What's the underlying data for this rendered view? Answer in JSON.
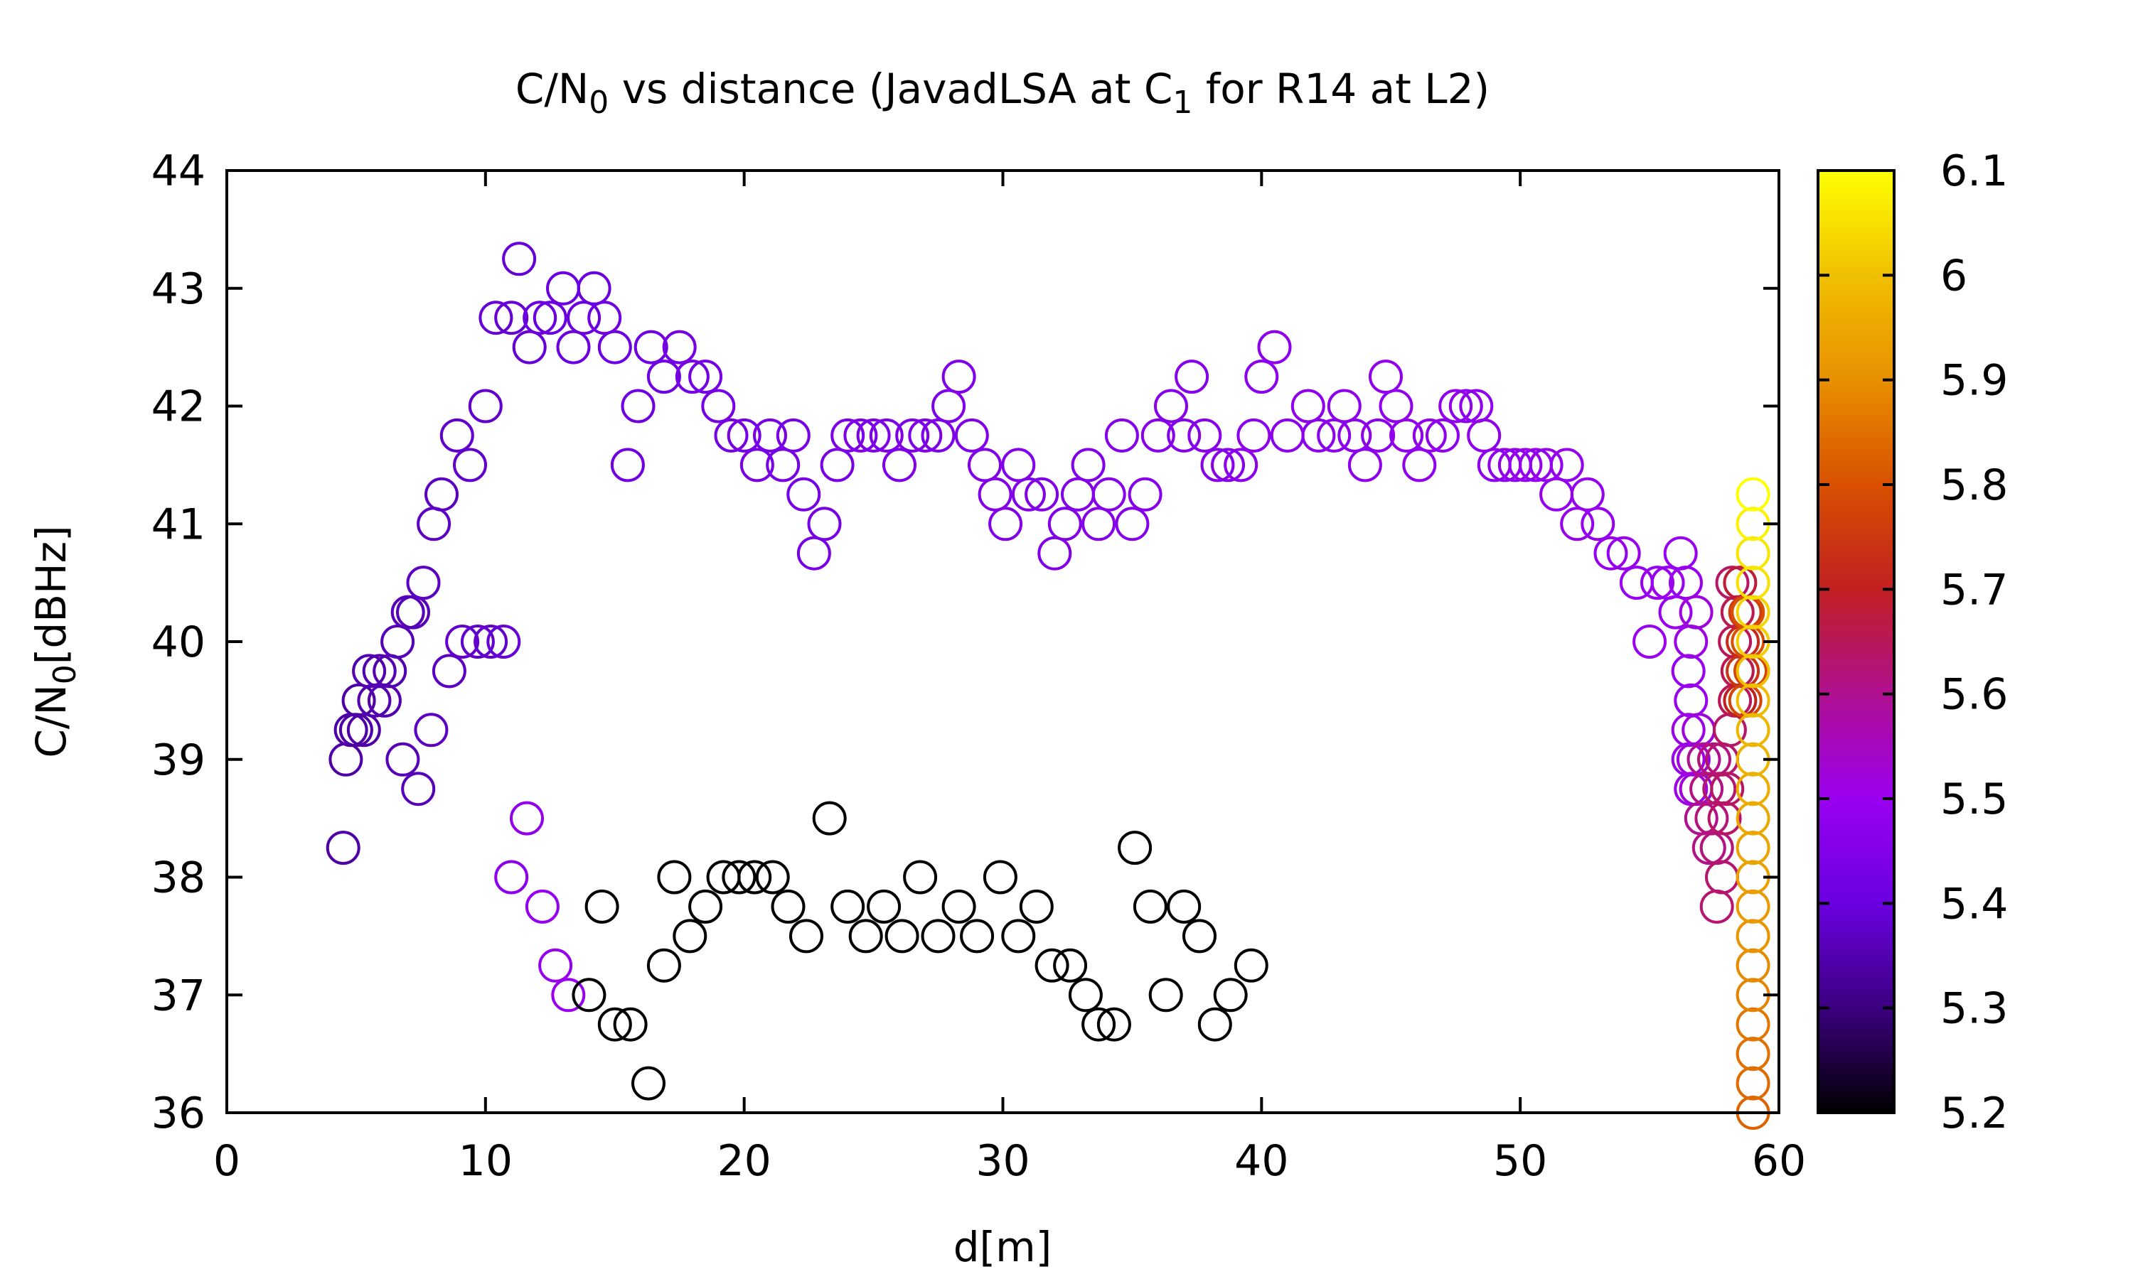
{
  "chart_data": {
    "type": "scatter",
    "title": {
      "pre": "C/N",
      "sub": "0",
      "mid": " vs distance (JavadLSA at C",
      "sub2": "1",
      "post": " for R14 at L2)"
    },
    "xlabel": "d[m]",
    "ylabel": {
      "pre": "C/N",
      "sub": "0",
      "post": "[dBHz]"
    },
    "xlim": [
      0,
      60
    ],
    "ylim": [
      36,
      44
    ],
    "xticks": [
      "0",
      "10",
      "20",
      "30",
      "40",
      "50",
      "60"
    ],
    "yticks": [
      "36",
      "37",
      "38",
      "39",
      "40",
      "41",
      "42",
      "43",
      "44"
    ],
    "colorbar": {
      "range": [
        5.2,
        6.1
      ],
      "ticks": [
        "5.2",
        "5.3",
        "5.4",
        "5.5",
        "5.6",
        "5.7",
        "5.8",
        "5.9",
        "6",
        "6.1"
      ],
      "palette": [
        "#000000",
        "#3b0080",
        "#6a00e0",
        "#9a00f0",
        "#b01090",
        "#c02020",
        "#d85000",
        "#e89000",
        "#f0c000",
        "#ffff00"
      ]
    },
    "grid": false,
    "marker": "open-circle",
    "points": [
      [
        4.5,
        38.25,
        5.34
      ],
      [
        4.6,
        39.0,
        5.34
      ],
      [
        4.8,
        39.25,
        5.34
      ],
      [
        5.0,
        39.25,
        5.34
      ],
      [
        5.1,
        39.5,
        5.34
      ],
      [
        5.3,
        39.25,
        5.34
      ],
      [
        5.5,
        39.75,
        5.35
      ],
      [
        5.7,
        39.5,
        5.35
      ],
      [
        5.9,
        39.75,
        5.35
      ],
      [
        6.1,
        39.5,
        5.35
      ],
      [
        6.3,
        39.75,
        5.35
      ],
      [
        6.6,
        40.0,
        5.36
      ],
      [
        6.8,
        39.0,
        5.36
      ],
      [
        7.0,
        40.25,
        5.36
      ],
      [
        7.2,
        40.25,
        5.36
      ],
      [
        7.4,
        38.75,
        5.36
      ],
      [
        7.6,
        40.5,
        5.37
      ],
      [
        7.9,
        39.25,
        5.37
      ],
      [
        8.0,
        41.0,
        5.37
      ],
      [
        8.3,
        41.25,
        5.37
      ],
      [
        8.6,
        39.75,
        5.37
      ],
      [
        8.9,
        41.75,
        5.38
      ],
      [
        9.1,
        40.0,
        5.38
      ],
      [
        9.4,
        41.5,
        5.38
      ],
      [
        9.7,
        40.0,
        5.38
      ],
      [
        10.0,
        42.0,
        5.38
      ],
      [
        10.2,
        40.0,
        5.38
      ],
      [
        10.4,
        42.75,
        5.39
      ],
      [
        10.7,
        40.0,
        5.39
      ],
      [
        11.0,
        42.75,
        5.39
      ],
      [
        11.3,
        43.25,
        5.39
      ],
      [
        11.7,
        42.5,
        5.39
      ],
      [
        12.1,
        42.75,
        5.4
      ],
      [
        12.5,
        42.75,
        5.4
      ],
      [
        13.0,
        43.0,
        5.4
      ],
      [
        13.4,
        42.5,
        5.4
      ],
      [
        13.8,
        42.75,
        5.4
      ],
      [
        14.2,
        43.0,
        5.4
      ],
      [
        14.6,
        42.75,
        5.41
      ],
      [
        15.0,
        42.5,
        5.41
      ],
      [
        15.5,
        41.5,
        5.41
      ],
      [
        15.9,
        42.0,
        5.41
      ],
      [
        16.4,
        42.5,
        5.41
      ],
      [
        16.9,
        42.25,
        5.41
      ],
      [
        17.5,
        42.5,
        5.42
      ],
      [
        18.0,
        42.25,
        5.42
      ],
      [
        18.5,
        42.25,
        5.42
      ],
      [
        19.0,
        42.0,
        5.42
      ],
      [
        19.5,
        41.75,
        5.42
      ],
      [
        20.0,
        41.75,
        5.42
      ],
      [
        20.5,
        41.5,
        5.43
      ],
      [
        21.0,
        41.75,
        5.43
      ],
      [
        21.5,
        41.5,
        5.43
      ],
      [
        21.9,
        41.75,
        5.43
      ],
      [
        22.3,
        41.25,
        5.43
      ],
      [
        22.7,
        40.75,
        5.43
      ],
      [
        23.1,
        41.0,
        5.43
      ],
      [
        23.6,
        41.5,
        5.43
      ],
      [
        24.0,
        41.75,
        5.44
      ],
      [
        24.5,
        41.75,
        5.44
      ],
      [
        25.0,
        41.75,
        5.44
      ],
      [
        25.5,
        41.75,
        5.44
      ],
      [
        26.0,
        41.5,
        5.44
      ],
      [
        26.5,
        41.75,
        5.44
      ],
      [
        27.0,
        41.75,
        5.44
      ],
      [
        27.5,
        41.75,
        5.44
      ],
      [
        27.9,
        42.0,
        5.44
      ],
      [
        28.3,
        42.25,
        5.45
      ],
      [
        28.8,
        41.75,
        5.45
      ],
      [
        29.3,
        41.5,
        5.45
      ],
      [
        29.7,
        41.25,
        5.45
      ],
      [
        30.1,
        41.0,
        5.45
      ],
      [
        30.6,
        41.5,
        5.45
      ],
      [
        31.0,
        41.25,
        5.45
      ],
      [
        31.5,
        41.25,
        5.45
      ],
      [
        32.0,
        40.75,
        5.45
      ],
      [
        32.4,
        41.0,
        5.45
      ],
      [
        32.9,
        41.25,
        5.45
      ],
      [
        33.3,
        41.5,
        5.45
      ],
      [
        33.7,
        41.0,
        5.46
      ],
      [
        34.1,
        41.25,
        5.46
      ],
      [
        34.6,
        41.75,
        5.46
      ],
      [
        35.0,
        41.0,
        5.46
      ],
      [
        35.5,
        41.25,
        5.46
      ],
      [
        36.0,
        41.75,
        5.46
      ],
      [
        36.5,
        42.0,
        5.46
      ],
      [
        37.0,
        41.75,
        5.46
      ],
      [
        37.3,
        42.25,
        5.46
      ],
      [
        37.8,
        41.75,
        5.46
      ],
      [
        38.3,
        41.5,
        5.46
      ],
      [
        38.7,
        41.5,
        5.46
      ],
      [
        39.2,
        41.5,
        5.47
      ],
      [
        39.7,
        41.75,
        5.47
      ],
      [
        40.0,
        42.25,
        5.47
      ],
      [
        40.5,
        42.5,
        5.47
      ],
      [
        41.0,
        41.75,
        5.47
      ],
      [
        41.8,
        42.0,
        5.47
      ],
      [
        42.2,
        41.75,
        5.47
      ],
      [
        42.8,
        41.75,
        5.47
      ],
      [
        43.2,
        42.0,
        5.47
      ],
      [
        43.6,
        41.75,
        5.47
      ],
      [
        44.0,
        41.5,
        5.47
      ],
      [
        44.5,
        41.75,
        5.47
      ],
      [
        44.8,
        42.25,
        5.48
      ],
      [
        45.2,
        42.0,
        5.48
      ],
      [
        45.6,
        41.75,
        5.48
      ],
      [
        46.1,
        41.5,
        5.48
      ],
      [
        46.5,
        41.75,
        5.48
      ],
      [
        47.0,
        41.75,
        5.48
      ],
      [
        47.5,
        42.0,
        5.48
      ],
      [
        47.9,
        42.0,
        5.48
      ],
      [
        48.3,
        42.0,
        5.48
      ],
      [
        48.6,
        41.75,
        5.48
      ],
      [
        49.0,
        41.5,
        5.48
      ],
      [
        49.4,
        41.5,
        5.48
      ],
      [
        49.8,
        41.5,
        5.48
      ],
      [
        50.2,
        41.5,
        5.49
      ],
      [
        50.6,
        41.5,
        5.49
      ],
      [
        51.0,
        41.5,
        5.49
      ],
      [
        51.4,
        41.25,
        5.49
      ],
      [
        51.8,
        41.5,
        5.49
      ],
      [
        52.2,
        41.0,
        5.49
      ],
      [
        52.6,
        41.25,
        5.49
      ],
      [
        53.0,
        41.0,
        5.49
      ],
      [
        53.5,
        40.75,
        5.49
      ],
      [
        54.0,
        40.75,
        5.49
      ],
      [
        54.5,
        40.5,
        5.5
      ],
      [
        55.0,
        40.0,
        5.5
      ],
      [
        55.3,
        40.5,
        5.5
      ],
      [
        55.7,
        40.5,
        5.5
      ],
      [
        56.0,
        40.25,
        5.5
      ],
      [
        56.2,
        40.75,
        5.5
      ],
      [
        56.4,
        40.5,
        5.5
      ],
      [
        56.5,
        39.75,
        5.5
      ],
      [
        56.6,
        39.5,
        5.5
      ],
      [
        56.5,
        39.25,
        5.51
      ],
      [
        56.5,
        39.0,
        5.51
      ],
      [
        56.6,
        38.75,
        5.51
      ],
      [
        56.6,
        40.0,
        5.51
      ],
      [
        56.7,
        39.0,
        5.52
      ],
      [
        56.8,
        38.75,
        5.52
      ],
      [
        56.8,
        40.25,
        5.52
      ],
      [
        56.9,
        39.25,
        5.52
      ],
      [
        57.0,
        38.5,
        5.6
      ],
      [
        57.1,
        39.0,
        5.6
      ],
      [
        57.2,
        38.75,
        5.61
      ],
      [
        57.3,
        38.25,
        5.61
      ],
      [
        57.4,
        38.5,
        5.62
      ],
      [
        57.5,
        39.0,
        5.62
      ],
      [
        57.6,
        38.25,
        5.62
      ],
      [
        57.6,
        37.75,
        5.63
      ],
      [
        57.7,
        38.75,
        5.63
      ],
      [
        57.8,
        38.0,
        5.63
      ],
      [
        57.8,
        39.0,
        5.63
      ],
      [
        57.9,
        38.5,
        5.64
      ],
      [
        58.0,
        38.75,
        5.64
      ],
      [
        58.1,
        39.25,
        5.64
      ],
      [
        58.2,
        40.5,
        5.64
      ],
      [
        58.3,
        39.5,
        5.65
      ],
      [
        58.3,
        40.0,
        5.65
      ],
      [
        58.4,
        40.25,
        5.66
      ],
      [
        58.4,
        39.75,
        5.66
      ],
      [
        58.5,
        40.5,
        5.68
      ],
      [
        58.5,
        39.5,
        5.7
      ],
      [
        58.6,
        40.0,
        5.72
      ],
      [
        58.6,
        39.75,
        5.74
      ],
      [
        58.7,
        40.25,
        5.76
      ],
      [
        58.7,
        39.5,
        5.78
      ],
      [
        58.8,
        40.0,
        5.8
      ],
      [
        58.8,
        40.25,
        5.8
      ],
      [
        58.9,
        39.75,
        5.78
      ],
      [
        59.0,
        36.0,
        5.83
      ],
      [
        59.0,
        36.25,
        5.84
      ],
      [
        59.0,
        36.5,
        5.85
      ],
      [
        59.0,
        36.75,
        5.86
      ],
      [
        59.0,
        37.0,
        5.88
      ],
      [
        59.0,
        37.25,
        5.89
      ],
      [
        59.0,
        37.5,
        5.91
      ],
      [
        59.0,
        37.75,
        5.92
      ],
      [
        59.0,
        38.0,
        5.93
      ],
      [
        59.0,
        38.25,
        5.94
      ],
      [
        59.0,
        38.5,
        5.95
      ],
      [
        59.0,
        38.75,
        5.96
      ],
      [
        59.0,
        39.0,
        5.97
      ],
      [
        59.0,
        39.25,
        5.98
      ],
      [
        59.0,
        39.5,
        5.99
      ],
      [
        59.0,
        39.75,
        6.0
      ],
      [
        59.0,
        40.0,
        6.02
      ],
      [
        59.0,
        40.25,
        6.03
      ],
      [
        59.0,
        40.5,
        6.05
      ],
      [
        59.0,
        40.75,
        6.06
      ],
      [
        59.0,
        41.0,
        6.08
      ],
      [
        59.0,
        41.25,
        6.1
      ],
      [
        11.0,
        38.0,
        5.47
      ],
      [
        11.6,
        38.5,
        5.48
      ],
      [
        12.2,
        37.75,
        5.49
      ],
      [
        12.7,
        37.25,
        5.49
      ],
      [
        13.2,
        37.0,
        5.5
      ],
      [
        14.0,
        37.0,
        5.2
      ],
      [
        14.5,
        37.75,
        5.2
      ],
      [
        15.0,
        36.75,
        5.2
      ],
      [
        15.6,
        36.75,
        5.2
      ],
      [
        16.3,
        36.25,
        5.2
      ],
      [
        16.9,
        37.25,
        5.2
      ],
      [
        17.3,
        38.0,
        5.2
      ],
      [
        17.9,
        37.5,
        5.2
      ],
      [
        18.5,
        37.75,
        5.2
      ],
      [
        19.2,
        38.0,
        5.2
      ],
      [
        19.8,
        38.0,
        5.2
      ],
      [
        20.4,
        38.0,
        5.2
      ],
      [
        21.1,
        38.0,
        5.2
      ],
      [
        21.7,
        37.75,
        5.2
      ],
      [
        22.4,
        37.5,
        5.2
      ],
      [
        23.3,
        38.5,
        5.2
      ],
      [
        24.0,
        37.75,
        5.2
      ],
      [
        24.7,
        37.5,
        5.2
      ],
      [
        25.4,
        37.75,
        5.2
      ],
      [
        26.1,
        37.5,
        5.2
      ],
      [
        26.8,
        38.0,
        5.2
      ],
      [
        27.5,
        37.5,
        5.2
      ],
      [
        28.3,
        37.75,
        5.2
      ],
      [
        29.0,
        37.5,
        5.2
      ],
      [
        29.9,
        38.0,
        5.2
      ],
      [
        30.6,
        37.5,
        5.2
      ],
      [
        31.3,
        37.75,
        5.2
      ],
      [
        31.9,
        37.25,
        5.2
      ],
      [
        32.6,
        37.25,
        5.2
      ],
      [
        33.2,
        37.0,
        5.2
      ],
      [
        33.7,
        36.75,
        5.2
      ],
      [
        34.3,
        36.75,
        5.2
      ],
      [
        35.1,
        38.25,
        5.2
      ],
      [
        35.7,
        37.75,
        5.2
      ],
      [
        36.3,
        37.0,
        5.2
      ],
      [
        37.0,
        37.75,
        5.2
      ],
      [
        37.6,
        37.5,
        5.2
      ],
      [
        38.2,
        36.75,
        5.2
      ],
      [
        38.8,
        37.0,
        5.2
      ],
      [
        39.6,
        37.25,
        5.2
      ]
    ]
  }
}
